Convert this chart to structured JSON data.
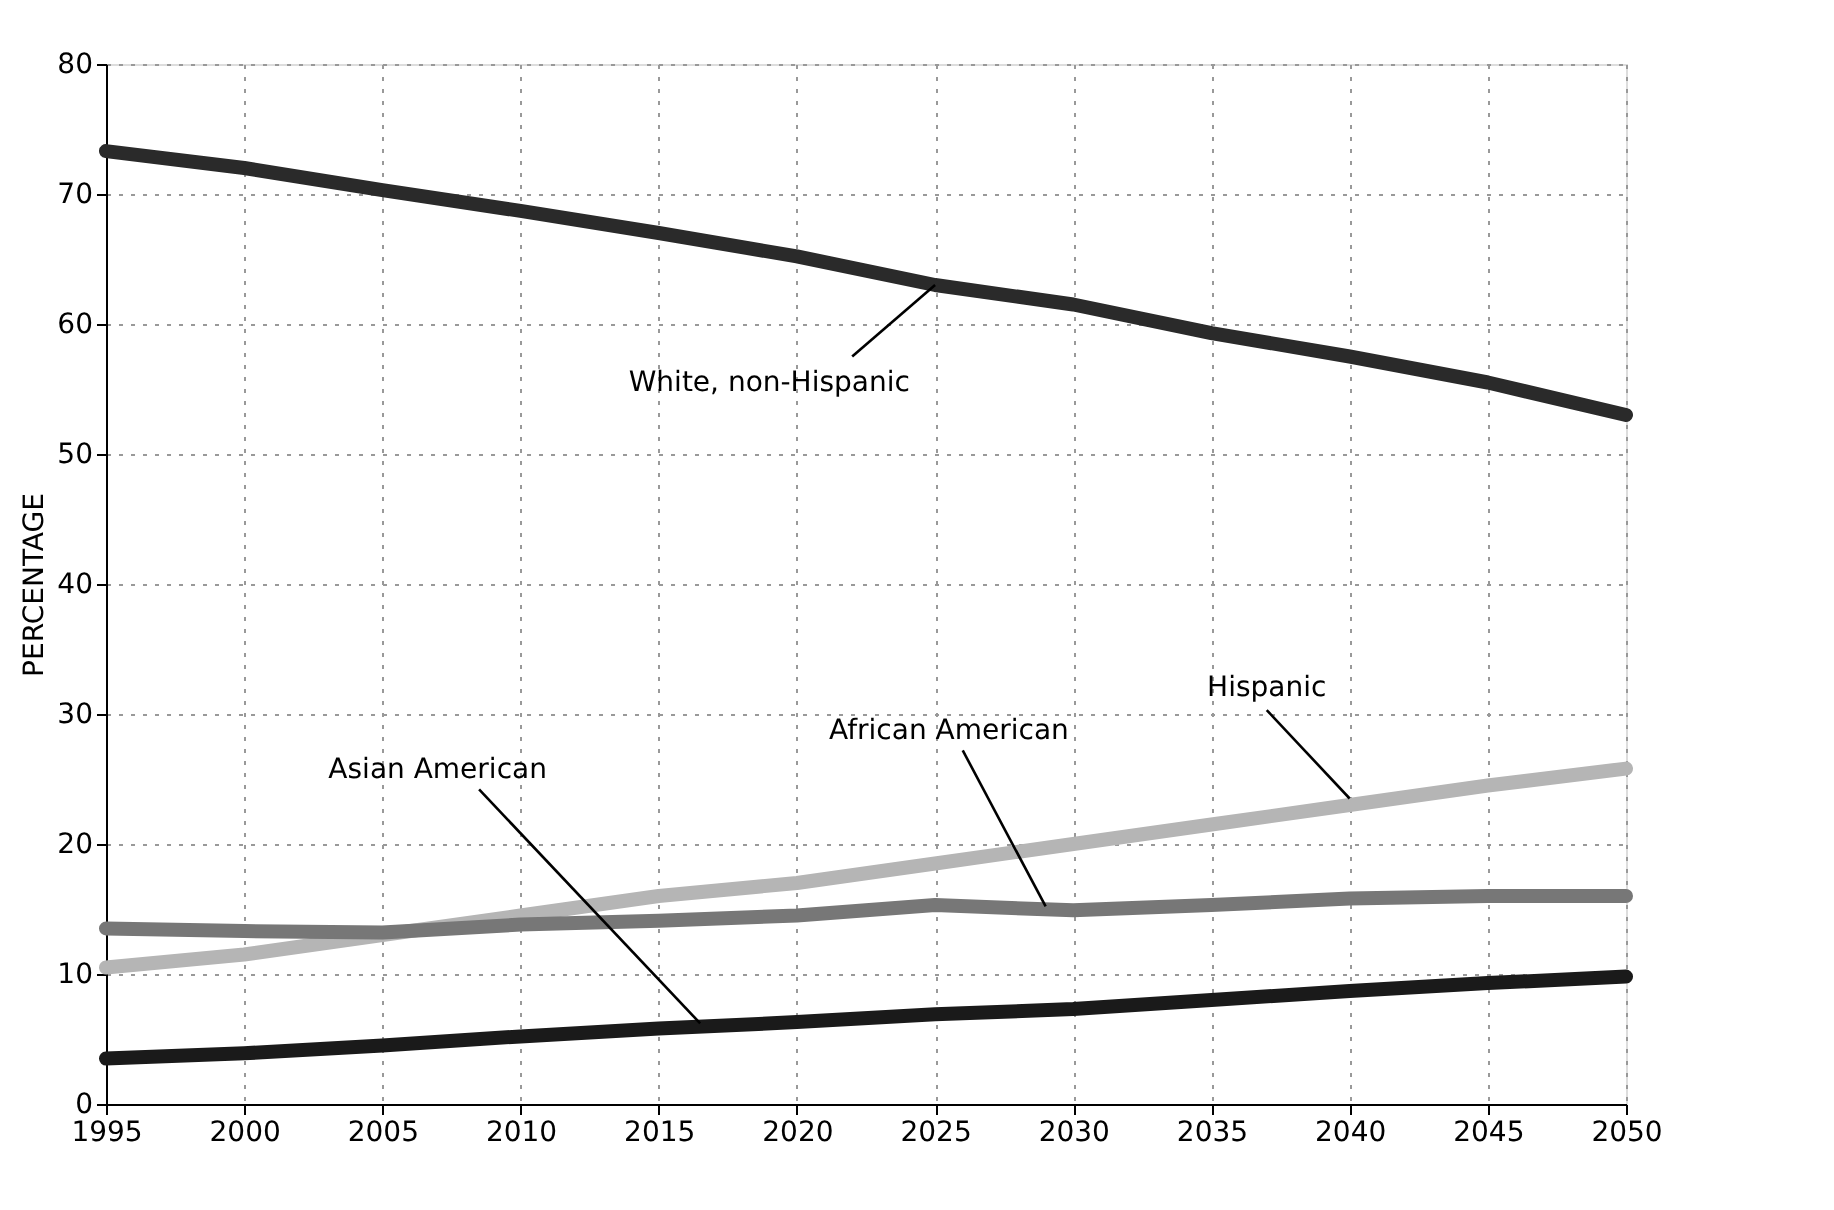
{
  "chart_data": {
    "type": "line",
    "ylabel": "PERCENTAGE",
    "x": [
      1995,
      2000,
      2005,
      2010,
      2015,
      2020,
      2025,
      2030,
      2035,
      2040,
      2045,
      2050
    ],
    "series": [
      {
        "color": "#2a2a2a",
        "values": [
          73.3,
          72,
          70.3,
          68.7,
          67,
          65.2,
          63,
          61.5,
          59.3,
          57.5,
          55.5,
          53
        ]
      },
      {
        "color": "#b5b5b5",
        "values": [
          10.5,
          11.5,
          13,
          14.5,
          16,
          17,
          18.5,
          20,
          21.5,
          23,
          24.5,
          25.8
        ]
      },
      {
        "color": "#777777",
        "values": [
          13.5,
          13.3,
          13.2,
          13.8,
          14.1,
          14.5,
          15.3,
          14.9,
          15.3,
          15.8,
          16,
          16
        ]
      },
      {
        "color": "#1a1a1a",
        "values": [
          3.5,
          3.9,
          4.5,
          5.2,
          5.8,
          6.3,
          6.9,
          7.3,
          8,
          8.7,
          9.3,
          9.8
        ]
      }
    ],
    "annotations": [
      {
        "text": "White, non-Hispanic",
        "x": 2025,
        "y": 63
      },
      {
        "text": "Hispanic",
        "x": 2040,
        "y": 23.5
      },
      {
        "text": "African American",
        "x": 2029,
        "y": 15.2
      },
      {
        "text": "Asian American",
        "x": 2016.5,
        "y": 6.2
      }
    ],
    "xlim": [
      1995,
      2050
    ],
    "xticks": [
      1995,
      2000,
      2005,
      2010,
      2015,
      2020,
      2025,
      2030,
      2035,
      2040,
      2045,
      2050
    ],
    "ylim": [
      0,
      80
    ],
    "yticks": [
      0,
      10,
      20,
      30,
      40,
      50,
      60,
      70,
      80
    ],
    "grid": true,
    "line_style": "solid"
  }
}
